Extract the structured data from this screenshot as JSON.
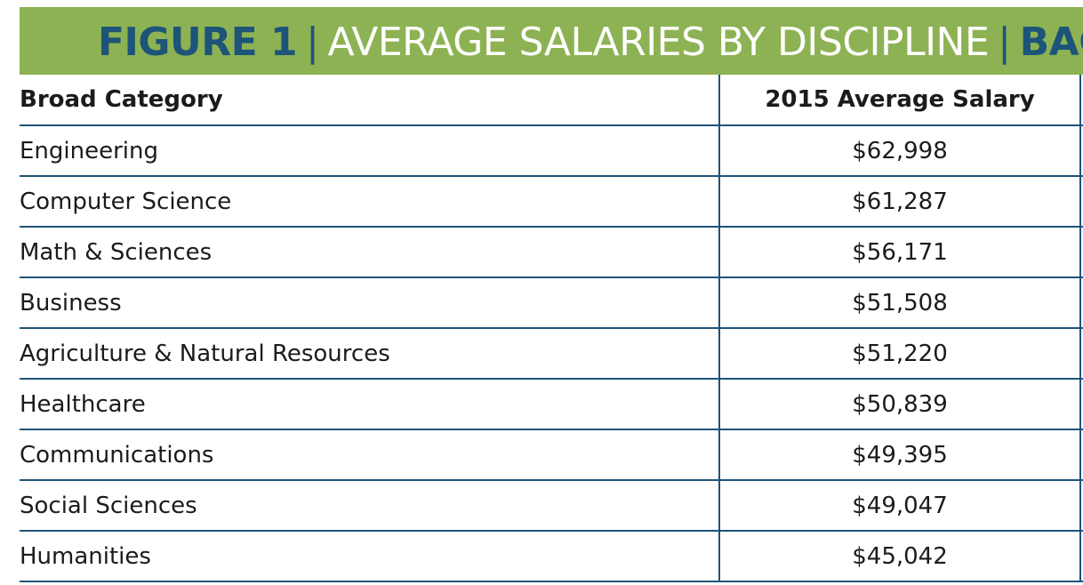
{
  "banner": {
    "figure_label": "FIGURE 1",
    "separator": "|",
    "title": "AVERAGE SALARIES BY DISCIPLINE",
    "trailing": "BACHEL",
    "background_color": "#8db253",
    "accent_color": "#1d5479"
  },
  "chart_data": {
    "type": "table",
    "title": "AVERAGE SALARIES BY DISCIPLINE",
    "columns": [
      "Broad Category",
      "2015 Average Salary"
    ],
    "rows": [
      {
        "category": "Engineering",
        "salary": "$62,998"
      },
      {
        "category": "Computer Science",
        "salary": "$61,287"
      },
      {
        "category": "Math & Sciences",
        "salary": "$56,171"
      },
      {
        "category": "Business",
        "salary": "$51,508"
      },
      {
        "category": "Agriculture & Natural Resources",
        "salary": "$51,220"
      },
      {
        "category": "Healthcare",
        "salary": "$50,839"
      },
      {
        "category": "Communications",
        "salary": "$49,395"
      },
      {
        "category": "Social Sciences",
        "salary": "$49,047"
      },
      {
        "category": "Humanities",
        "salary": "$45,042"
      }
    ],
    "values": [
      62998,
      61287,
      56171,
      51508,
      51220,
      50839,
      49395,
      49047,
      45042
    ]
  }
}
